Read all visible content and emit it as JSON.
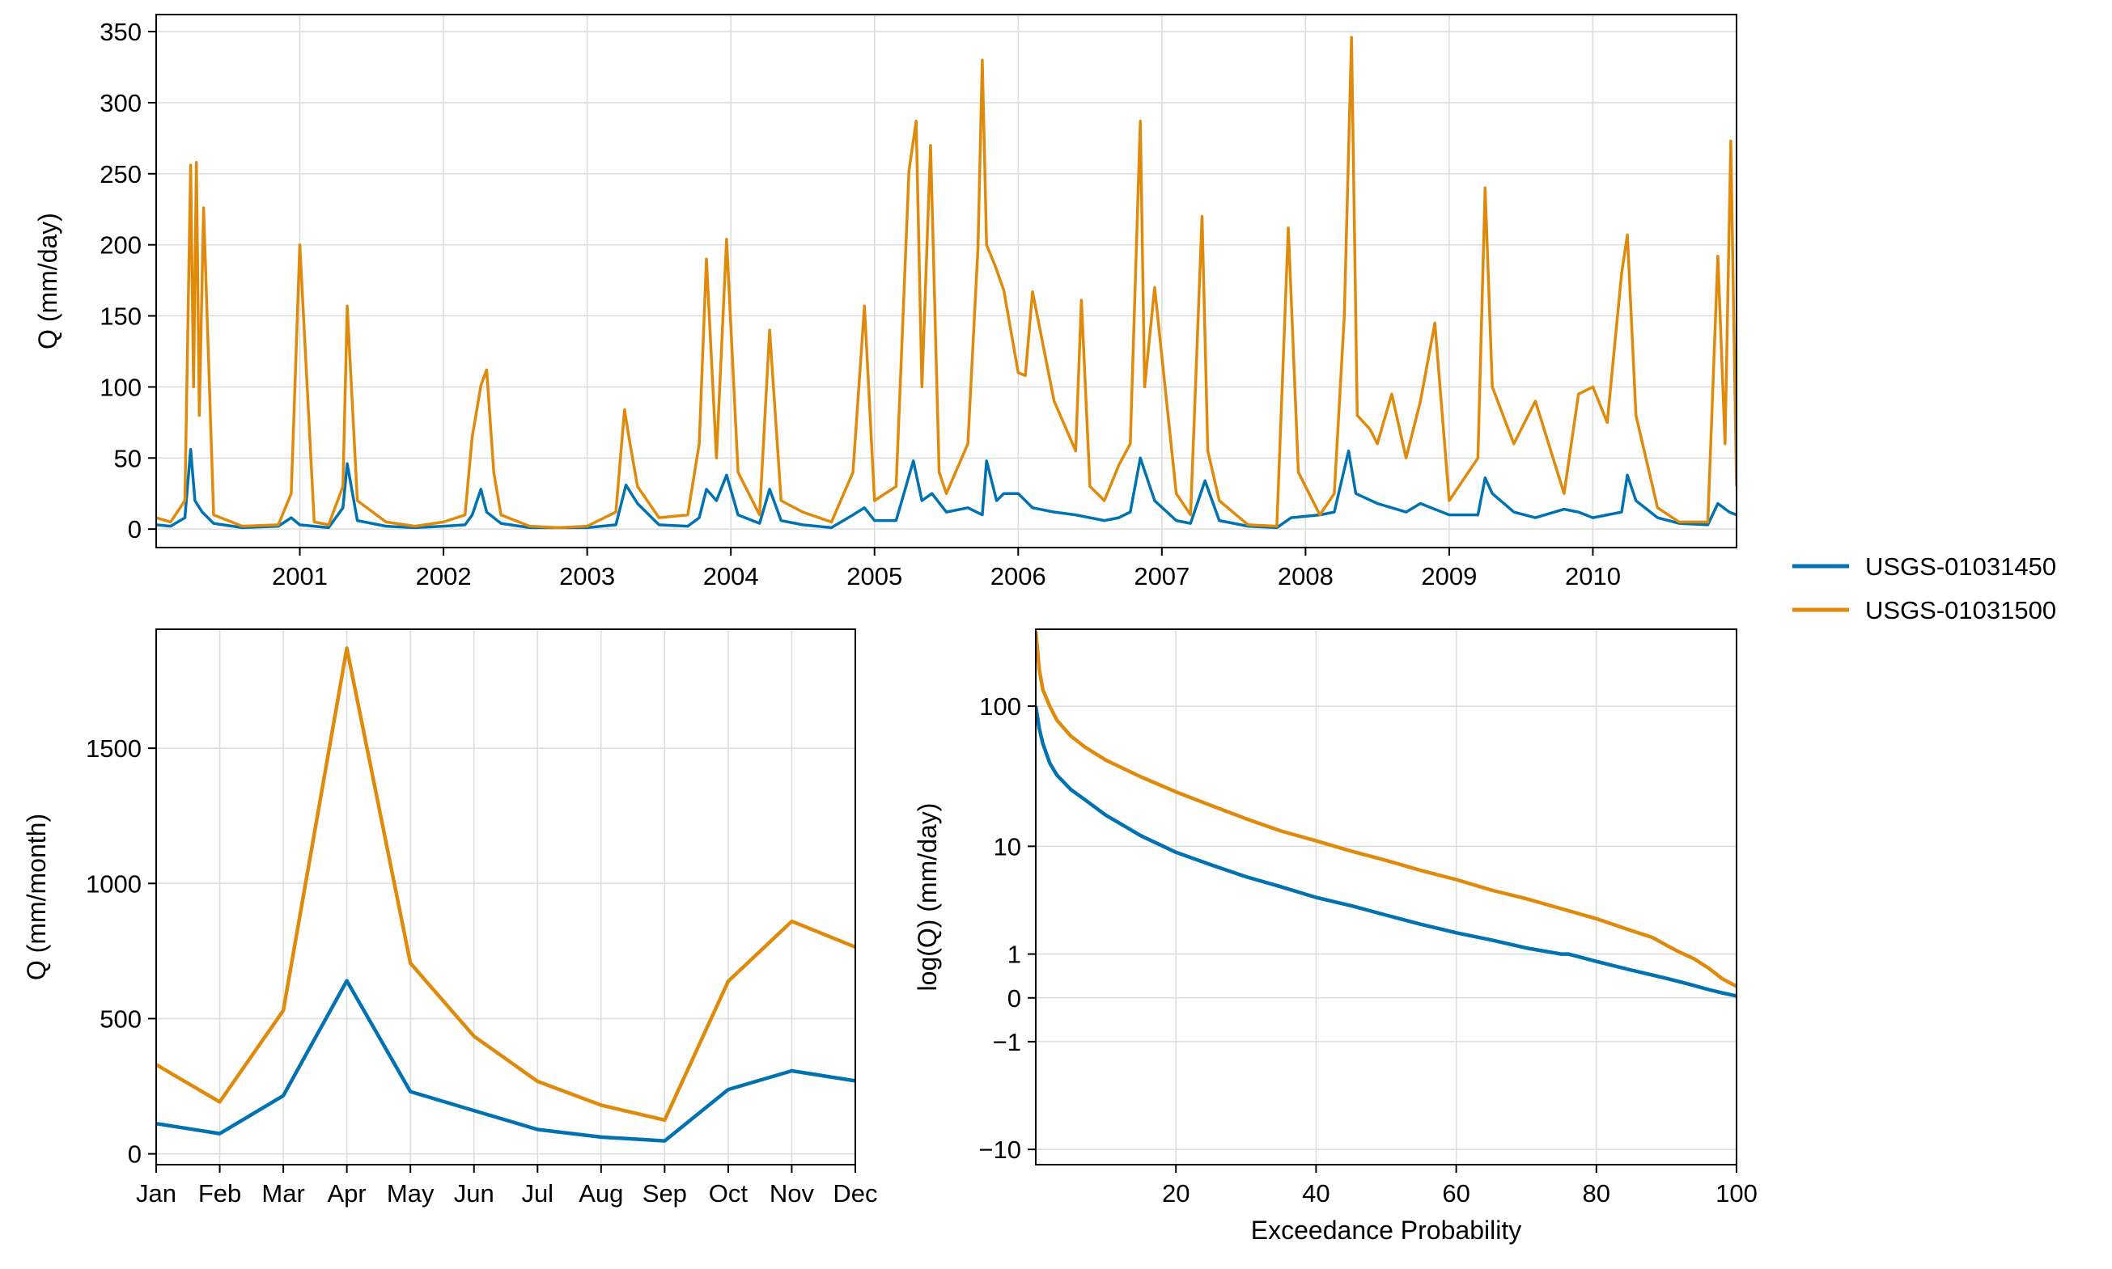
{
  "colors": {
    "series_1": "#0072b2",
    "series_2": "#e08a0b",
    "grid": "#dcdcdc",
    "axis": "#000000"
  },
  "legend": {
    "placement": "right",
    "entries": [
      {
        "name": "USGS-01031450",
        "color": "#0072b2"
      },
      {
        "name": "USGS-01031500",
        "color": "#e08a0b"
      }
    ]
  },
  "chart_data": [
    {
      "id": "timeseries",
      "type": "line",
      "title": "",
      "xlabel": "",
      "ylabel": "Q (mm/day)",
      "xlim": [
        2000.0,
        2011.0
      ],
      "ylim": [
        -13,
        362
      ],
      "xticks": [
        2001,
        2002,
        2003,
        2004,
        2005,
        2006,
        2007,
        2008,
        2009,
        2010
      ],
      "xtick_labels": [
        "2001",
        "2002",
        "2003",
        "2004",
        "2005",
        "2006",
        "2007",
        "2008",
        "2009",
        "2010"
      ],
      "yticks": [
        0,
        50,
        100,
        150,
        200,
        250,
        300,
        350
      ],
      "ytick_labels": [
        "0",
        "50",
        "100",
        "150",
        "200",
        "250",
        "300",
        "350"
      ],
      "grid": true,
      "series": [
        {
          "name": "USGS-01031450",
          "color": "#0072b2",
          "x": [
            2000.0,
            2000.1,
            2000.2,
            2000.24,
            2000.27,
            2000.32,
            2000.4,
            2000.6,
            2000.85,
            2000.94,
            2001.0,
            2001.1,
            2001.2,
            2001.3,
            2001.33,
            2001.4,
            2001.6,
            2001.8,
            2002.0,
            2002.15,
            2002.2,
            2002.26,
            2002.3,
            2002.4,
            2002.6,
            2002.8,
            2003.0,
            2003.2,
            2003.27,
            2003.35,
            2003.5,
            2003.7,
            2003.78,
            2003.83,
            2003.9,
            2003.97,
            2004.05,
            2004.2,
            2004.27,
            2004.35,
            2004.5,
            2004.7,
            2004.85,
            2004.93,
            2005.0,
            2005.15,
            2005.27,
            2005.33,
            2005.4,
            2005.5,
            2005.65,
            2005.75,
            2005.78,
            2005.85,
            2005.9,
            2006.0,
            2006.1,
            2006.25,
            2006.4,
            2006.6,
            2006.7,
            2006.78,
            2006.85,
            2006.95,
            2007.1,
            2007.2,
            2007.3,
            2007.4,
            2007.6,
            2007.8,
            2007.9,
            2008.1,
            2008.2,
            2008.3,
            2008.35,
            2008.5,
            2008.6,
            2008.7,
            2008.8,
            2008.9,
            2009.0,
            2009.2,
            2009.25,
            2009.3,
            2009.45,
            2009.6,
            2009.8,
            2009.9,
            2010.0,
            2010.1,
            2010.2,
            2010.24,
            2010.3,
            2010.45,
            2010.6,
            2010.8,
            2010.87,
            2010.95,
            2011.0
          ],
          "y": [
            3,
            2,
            8,
            56,
            20,
            12,
            4,
            1,
            2,
            8,
            3,
            2,
            1,
            15,
            46,
            6,
            2,
            1,
            2,
            3,
            10,
            28,
            12,
            4,
            1,
            1,
            1,
            3,
            31,
            18,
            3,
            2,
            8,
            28,
            20,
            38,
            10,
            4,
            28,
            6,
            3,
            1,
            10,
            15,
            6,
            6,
            48,
            20,
            25,
            12,
            15,
            10,
            48,
            20,
            25,
            25,
            15,
            12,
            10,
            6,
            8,
            12,
            50,
            20,
            6,
            4,
            34,
            6,
            2,
            1,
            8,
            10,
            12,
            55,
            25,
            18,
            15,
            12,
            18,
            14,
            10,
            10,
            36,
            25,
            12,
            8,
            14,
            12,
            8,
            10,
            12,
            38,
            20,
            8,
            4,
            3,
            18,
            12,
            10
          ]
        },
        {
          "name": "USGS-01031500",
          "color": "#e08a0b",
          "x": [
            2000.0,
            2000.1,
            2000.2,
            2000.24,
            2000.26,
            2000.28,
            2000.3,
            2000.33,
            2000.4,
            2000.6,
            2000.85,
            2000.94,
            2001.0,
            2001.1,
            2001.2,
            2001.3,
            2001.33,
            2001.4,
            2001.6,
            2001.8,
            2002.0,
            2002.15,
            2002.2,
            2002.26,
            2002.3,
            2002.35,
            2002.4,
            2002.6,
            2002.8,
            2003.0,
            2003.2,
            2003.26,
            2003.29,
            2003.35,
            2003.5,
            2003.7,
            2003.78,
            2003.83,
            2003.9,
            2003.97,
            2004.05,
            2004.2,
            2004.27,
            2004.35,
            2004.5,
            2004.7,
            2004.85,
            2004.93,
            2005.0,
            2005.15,
            2005.24,
            2005.29,
            2005.33,
            2005.39,
            2005.45,
            2005.5,
            2005.65,
            2005.72,
            2005.75,
            2005.78,
            2005.84,
            2005.9,
            2006.0,
            2006.05,
            2006.1,
            2006.25,
            2006.4,
            2006.44,
            2006.5,
            2006.6,
            2006.7,
            2006.78,
            2006.85,
            2006.88,
            2006.95,
            2007.1,
            2007.2,
            2007.28,
            2007.32,
            2007.4,
            2007.6,
            2007.8,
            2007.88,
            2007.95,
            2008.1,
            2008.2,
            2008.27,
            2008.32,
            2008.36,
            2008.45,
            2008.5,
            2008.6,
            2008.7,
            2008.8,
            2008.9,
            2009.0,
            2009.2,
            2009.25,
            2009.3,
            2009.45,
            2009.6,
            2009.8,
            2009.9,
            2010.0,
            2010.1,
            2010.2,
            2010.24,
            2010.3,
            2010.45,
            2010.6,
            2010.8,
            2010.87,
            2010.92,
            2010.96,
            2011.0
          ],
          "y": [
            8,
            5,
            20,
            256,
            100,
            258,
            80,
            226,
            10,
            2,
            3,
            25,
            200,
            5,
            3,
            30,
            157,
            20,
            5,
            2,
            5,
            10,
            65,
            101,
            112,
            40,
            10,
            2,
            1,
            2,
            12,
            84,
            65,
            30,
            8,
            10,
            60,
            190,
            50,
            204,
            40,
            10,
            140,
            20,
            12,
            5,
            40,
            157,
            20,
            30,
            252,
            287,
            100,
            270,
            40,
            25,
            60,
            198,
            330,
            200,
            185,
            168,
            110,
            108,
            167,
            90,
            55,
            161,
            30,
            20,
            45,
            60,
            287,
            100,
            170,
            25,
            10,
            220,
            55,
            20,
            3,
            2,
            212,
            40,
            10,
            25,
            150,
            346,
            80,
            70,
            60,
            95,
            50,
            90,
            145,
            20,
            50,
            240,
            100,
            60,
            90,
            25,
            95,
            100,
            75,
            180,
            207,
            80,
            15,
            5,
            5,
            192,
            60,
            273,
            30
          ]
        }
      ]
    },
    {
      "id": "monthly",
      "type": "line",
      "title": "",
      "xlabel": "",
      "ylabel": "Q (mm/month)",
      "categories": [
        "Jan",
        "Feb",
        "Mar",
        "Apr",
        "May",
        "Jun",
        "Jul",
        "Aug",
        "Sep",
        "Oct",
        "Nov",
        "Dec"
      ],
      "ylim": [
        -40,
        1940
      ],
      "yticks": [
        0,
        500,
        1000,
        1500
      ],
      "ytick_labels": [
        "0",
        "500",
        "1000",
        "1500"
      ],
      "grid": true,
      "series": [
        {
          "name": "USGS-01031450",
          "color": "#0072b2",
          "values": [
            112,
            75,
            215,
            640,
            230,
            160,
            90,
            62,
            48,
            238,
            307,
            270
          ]
        },
        {
          "name": "USGS-01031500",
          "color": "#e08a0b",
          "values": [
            330,
            192,
            530,
            1870,
            705,
            435,
            268,
            180,
            125,
            638,
            860,
            765
          ]
        }
      ]
    },
    {
      "id": "flow-duration",
      "type": "line",
      "title": "",
      "xlabel": "Exceedance Probability",
      "ylabel": "log(Q) (mm/day)",
      "xlim": [
        0,
        100
      ],
      "yscale": "symlog",
      "ylim": [
        -13,
        340
      ],
      "xticks": [
        20,
        40,
        60,
        80,
        100
      ],
      "xtick_labels": [
        "20",
        "40",
        "60",
        "80",
        "100"
      ],
      "yticks": [
        -10,
        -1,
        0,
        1,
        10,
        100
      ],
      "ytick_labels": [
        "−10",
        "−1",
        "0",
        "1",
        "10",
        "100"
      ],
      "grid": true,
      "series": [
        {
          "name": "USGS-01031450",
          "color": "#0072b2",
          "x": [
            0,
            0.5,
            1,
            2,
            3,
            5,
            7,
            10,
            15,
            20,
            25,
            30,
            35,
            40,
            45,
            50,
            55,
            60,
            65,
            70,
            75,
            76,
            80,
            85,
            90,
            93,
            96,
            98,
            100
          ],
          "y": [
            100,
            70,
            55,
            40,
            33,
            26,
            22,
            17,
            12,
            9,
            7.2,
            5.8,
            4.8,
            3.9,
            3.3,
            2.7,
            2.2,
            1.8,
            1.5,
            1.2,
            1.0,
            1.0,
            0.78,
            0.55,
            0.36,
            0.25,
            0.14,
            0.08,
            0.03
          ]
        },
        {
          "name": "USGS-01031500",
          "color": "#e08a0b",
          "x": [
            0,
            0.5,
            1,
            2,
            3,
            5,
            7,
            10,
            15,
            20,
            25,
            30,
            35,
            40,
            45,
            50,
            55,
            60,
            65,
            70,
            75,
            80,
            85,
            88,
            90,
            92,
            94,
            96,
            98,
            100
          ],
          "y": [
            330,
            180,
            130,
            100,
            80,
            62,
            52,
            42,
            32,
            25,
            20,
            16,
            13,
            11,
            9.2,
            7.8,
            6.5,
            5.5,
            4.5,
            3.8,
            3.1,
            2.5,
            1.9,
            1.6,
            1.3,
            1.05,
            0.85,
            0.6,
            0.35,
            0.2
          ]
        }
      ]
    }
  ]
}
